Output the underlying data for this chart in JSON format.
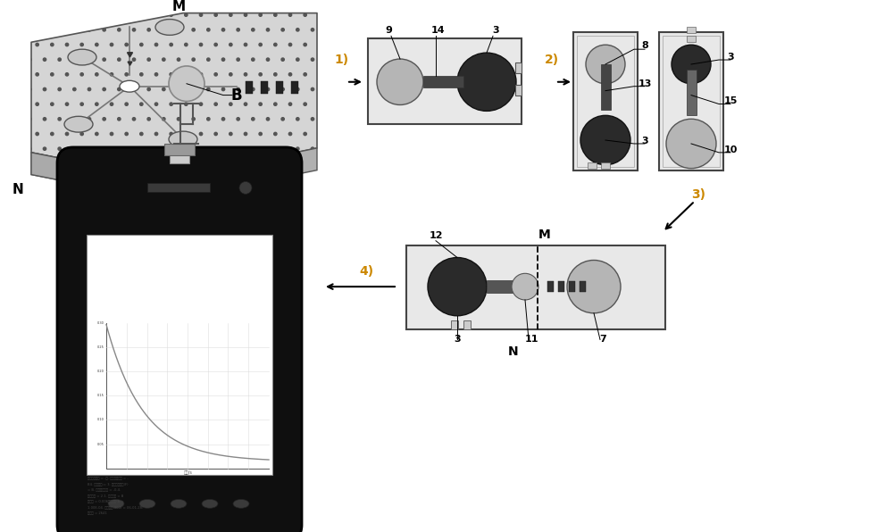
{
  "bg_color": "#ffffff",
  "label_M_top": "M",
  "label_N_top": "N",
  "label_B": "B",
  "label_M_bottom": "M",
  "label_N_bottom": "N",
  "step1": "1)",
  "step2": "2)",
  "step3": "3)",
  "step4": "4)"
}
